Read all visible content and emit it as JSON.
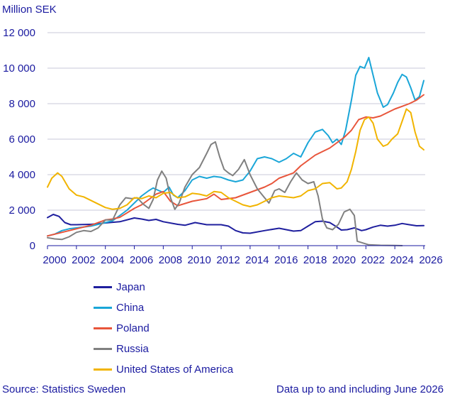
{
  "chart_data": {
    "type": "line",
    "title": "",
    "unit_label": "Million SEK",
    "xlabel": "",
    "ylabel": "",
    "xlim": [
      2000,
      2026
    ],
    "ylim": [
      0,
      12000
    ],
    "y_ticks": [
      0,
      2000,
      4000,
      6000,
      8000,
      10000,
      12000
    ],
    "y_tick_labels": [
      "0",
      "2 000",
      "4 000",
      "6 000",
      "8 000",
      "10 000",
      "12 000"
    ],
    "x_ticks": [
      2000,
      2002,
      2004,
      2006,
      2008,
      2010,
      2012,
      2014,
      2016,
      2018,
      2020,
      2022,
      2024,
      2026
    ],
    "x_tick_labels": [
      "2000",
      "2002",
      "2004",
      "2006",
      "2008",
      "2010",
      "2012",
      "2014",
      "2016",
      "2018",
      "2020",
      "2022",
      "2024",
      "2026"
    ],
    "grid": "horizontal",
    "legend_position": "bottom-left",
    "series": [
      {
        "name": "Japan",
        "color": "#1f1f9e",
        "points": [
          [
            2000,
            1580
          ],
          [
            2000.4,
            1760
          ],
          [
            2000.8,
            1650
          ],
          [
            2001.2,
            1300
          ],
          [
            2001.6,
            1180
          ],
          [
            2002,
            1180
          ],
          [
            2003,
            1200
          ],
          [
            2004,
            1280
          ],
          [
            2005,
            1350
          ],
          [
            2006,
            1560
          ],
          [
            2006.5,
            1500
          ],
          [
            2007,
            1420
          ],
          [
            2007.5,
            1480
          ],
          [
            2008,
            1350
          ],
          [
            2009,
            1200
          ],
          [
            2009.5,
            1150
          ],
          [
            2010.2,
            1300
          ],
          [
            2011,
            1180
          ],
          [
            2012,
            1180
          ],
          [
            2012.5,
            1100
          ],
          [
            2013,
            850
          ],
          [
            2013.5,
            720
          ],
          [
            2014,
            700
          ],
          [
            2015,
            850
          ],
          [
            2016,
            980
          ],
          [
            2016.5,
            900
          ],
          [
            2017,
            820
          ],
          [
            2017.5,
            850
          ],
          [
            2018,
            1100
          ],
          [
            2018.5,
            1350
          ],
          [
            2019,
            1380
          ],
          [
            2019.5,
            1300
          ],
          [
            2020,
            1050
          ],
          [
            2020.3,
            880
          ],
          [
            2020.7,
            900
          ],
          [
            2021.2,
            1000
          ],
          [
            2021.7,
            850
          ],
          [
            2022,
            900
          ],
          [
            2022.5,
            1050
          ],
          [
            2023,
            1150
          ],
          [
            2023.5,
            1100
          ],
          [
            2024,
            1150
          ],
          [
            2024.5,
            1250
          ],
          [
            2025,
            1180
          ],
          [
            2025.5,
            1120
          ],
          [
            2026,
            1130
          ]
        ]
      },
      {
        "name": "China",
        "color": "#1aa6d8",
        "points": [
          [
            2000,
            550
          ],
          [
            2000.5,
            650
          ],
          [
            2001,
            850
          ],
          [
            2001.5,
            950
          ],
          [
            2002,
            1000
          ],
          [
            2002.5,
            1050
          ],
          [
            2003,
            1100
          ],
          [
            2003.5,
            1200
          ],
          [
            2004,
            1300
          ],
          [
            2004.5,
            1400
          ],
          [
            2005,
            1700
          ],
          [
            2005.5,
            2000
          ],
          [
            2006,
            2400
          ],
          [
            2006.5,
            2800
          ],
          [
            2007,
            3100
          ],
          [
            2007.3,
            3250
          ],
          [
            2007.7,
            3100
          ],
          [
            2008,
            3000
          ],
          [
            2008.4,
            3300
          ],
          [
            2008.7,
            2850
          ],
          [
            2009,
            2700
          ],
          [
            2009.5,
            3100
          ],
          [
            2010,
            3700
          ],
          [
            2010.5,
            3900
          ],
          [
            2011,
            3800
          ],
          [
            2011.5,
            3900
          ],
          [
            2012,
            3850
          ],
          [
            2012.5,
            3700
          ],
          [
            2013,
            3600
          ],
          [
            2013.5,
            3700
          ],
          [
            2014,
            4200
          ],
          [
            2014.5,
            4900
          ],
          [
            2015,
            5000
          ],
          [
            2015.5,
            4900
          ],
          [
            2016,
            4700
          ],
          [
            2016.5,
            4900
          ],
          [
            2017,
            5200
          ],
          [
            2017.5,
            5000
          ],
          [
            2018,
            5800
          ],
          [
            2018.5,
            6400
          ],
          [
            2019,
            6550
          ],
          [
            2019.4,
            6200
          ],
          [
            2019.7,
            5800
          ],
          [
            2020,
            6000
          ],
          [
            2020.3,
            5700
          ],
          [
            2020.6,
            6500
          ],
          [
            2021,
            8200
          ],
          [
            2021.3,
            9600
          ],
          [
            2021.6,
            10100
          ],
          [
            2021.9,
            10000
          ],
          [
            2022.2,
            10600
          ],
          [
            2022.5,
            9600
          ],
          [
            2022.8,
            8600
          ],
          [
            2023.2,
            7800
          ],
          [
            2023.5,
            7950
          ],
          [
            2023.9,
            8600
          ],
          [
            2024.2,
            9200
          ],
          [
            2024.5,
            9650
          ],
          [
            2024.8,
            9500
          ],
          [
            2025.1,
            8900
          ],
          [
            2025.4,
            8200
          ],
          [
            2025.7,
            8400
          ],
          [
            2026,
            9300
          ]
        ]
      },
      {
        "name": "Poland",
        "color": "#e8553b",
        "points": [
          [
            2000,
            550
          ],
          [
            2001,
            750
          ],
          [
            2002,
            950
          ],
          [
            2003,
            1150
          ],
          [
            2003.5,
            1300
          ],
          [
            2004,
            1450
          ],
          [
            2004.5,
            1500
          ],
          [
            2005,
            1600
          ],
          [
            2005.5,
            1850
          ],
          [
            2006,
            2100
          ],
          [
            2006.5,
            2300
          ],
          [
            2007,
            2600
          ],
          [
            2007.5,
            2900
          ],
          [
            2008,
            3050
          ],
          [
            2008.5,
            2500
          ],
          [
            2009,
            2250
          ],
          [
            2010,
            2500
          ],
          [
            2011,
            2650
          ],
          [
            2011.5,
            2900
          ],
          [
            2012,
            2600
          ],
          [
            2013,
            2700
          ],
          [
            2014,
            3000
          ],
          [
            2015,
            3300
          ],
          [
            2015.5,
            3500
          ],
          [
            2016,
            3800
          ],
          [
            2016.5,
            3950
          ],
          [
            2017,
            4100
          ],
          [
            2017.5,
            4500
          ],
          [
            2018,
            4800
          ],
          [
            2018.5,
            5100
          ],
          [
            2019,
            5300
          ],
          [
            2019.5,
            5500
          ],
          [
            2020,
            5800
          ],
          [
            2020.5,
            6100
          ],
          [
            2021,
            6500
          ],
          [
            2021.5,
            7100
          ],
          [
            2022,
            7250
          ],
          [
            2022.5,
            7200
          ],
          [
            2023,
            7300
          ],
          [
            2023.5,
            7500
          ],
          [
            2024,
            7700
          ],
          [
            2024.5,
            7850
          ],
          [
            2025,
            8000
          ],
          [
            2025.5,
            8200
          ],
          [
            2026,
            8500
          ]
        ]
      },
      {
        "name": "Russia",
        "color": "#808080",
        "points": [
          [
            2000,
            450
          ],
          [
            2000.5,
            380
          ],
          [
            2001,
            350
          ],
          [
            2001.5,
            500
          ],
          [
            2002,
            750
          ],
          [
            2002.5,
            850
          ],
          [
            2003,
            800
          ],
          [
            2003.5,
            1000
          ],
          [
            2004,
            1450
          ],
          [
            2004.5,
            1450
          ],
          [
            2005,
            2300
          ],
          [
            2005.4,
            2700
          ],
          [
            2005.8,
            2650
          ],
          [
            2006.2,
            2700
          ],
          [
            2006.6,
            2350
          ],
          [
            2007,
            2100
          ],
          [
            2007.3,
            2600
          ],
          [
            2007.6,
            3700
          ],
          [
            2007.9,
            4200
          ],
          [
            2008.2,
            3800
          ],
          [
            2008.5,
            2700
          ],
          [
            2008.8,
            2050
          ],
          [
            2009.1,
            2400
          ],
          [
            2009.5,
            3300
          ],
          [
            2010,
            4000
          ],
          [
            2010.5,
            4400
          ],
          [
            2011,
            5200
          ],
          [
            2011.3,
            5700
          ],
          [
            2011.6,
            5850
          ],
          [
            2011.9,
            5000
          ],
          [
            2012.2,
            4300
          ],
          [
            2012.5,
            4100
          ],
          [
            2012.8,
            3950
          ],
          [
            2013.2,
            4300
          ],
          [
            2013.6,
            4850
          ],
          [
            2014,
            4000
          ],
          [
            2014.5,
            3200
          ],
          [
            2015,
            2700
          ],
          [
            2015.3,
            2400
          ],
          [
            2015.7,
            3100
          ],
          [
            2016,
            3200
          ],
          [
            2016.4,
            3000
          ],
          [
            2016.8,
            3600
          ],
          [
            2017.2,
            4100
          ],
          [
            2017.6,
            3700
          ],
          [
            2018,
            3500
          ],
          [
            2018.4,
            3600
          ],
          [
            2018.7,
            2800
          ],
          [
            2019,
            1500
          ],
          [
            2019.3,
            1000
          ],
          [
            2019.7,
            900
          ],
          [
            2020.1,
            1200
          ],
          [
            2020.5,
            1900
          ],
          [
            2020.9,
            2050
          ],
          [
            2021.2,
            1700
          ],
          [
            2021.4,
            250
          ],
          [
            2021.8,
            150
          ],
          [
            2022.2,
            50
          ],
          [
            2023,
            20
          ],
          [
            2024,
            10
          ],
          [
            2024.5,
            0
          ]
        ]
      },
      {
        "name": "United States of America",
        "color": "#f1b400",
        "points": [
          [
            2000,
            3300
          ],
          [
            2000.3,
            3800
          ],
          [
            2000.7,
            4100
          ],
          [
            2001,
            3900
          ],
          [
            2001.5,
            3200
          ],
          [
            2002,
            2850
          ],
          [
            2002.5,
            2750
          ],
          [
            2003,
            2550
          ],
          [
            2003.5,
            2350
          ],
          [
            2004,
            2150
          ],
          [
            2004.5,
            2050
          ],
          [
            2005,
            2100
          ],
          [
            2005.5,
            2300
          ],
          [
            2006,
            2700
          ],
          [
            2006.5,
            2650
          ],
          [
            2007,
            2800
          ],
          [
            2007.5,
            2700
          ],
          [
            2008,
            2950
          ],
          [
            2008.5,
            3000
          ],
          [
            2009,
            2700
          ],
          [
            2009.5,
            2750
          ],
          [
            2010,
            2950
          ],
          [
            2010.5,
            2900
          ],
          [
            2011,
            2800
          ],
          [
            2011.5,
            3050
          ],
          [
            2012,
            3000
          ],
          [
            2012.5,
            2700
          ],
          [
            2013,
            2500
          ],
          [
            2013.5,
            2300
          ],
          [
            2014,
            2200
          ],
          [
            2014.5,
            2300
          ],
          [
            2015,
            2500
          ],
          [
            2015.5,
            2700
          ],
          [
            2016,
            2800
          ],
          [
            2016.5,
            2750
          ],
          [
            2017,
            2700
          ],
          [
            2017.5,
            2800
          ],
          [
            2018,
            3100
          ],
          [
            2018.5,
            3200
          ],
          [
            2019,
            3500
          ],
          [
            2019.5,
            3550
          ],
          [
            2020,
            3200
          ],
          [
            2020.3,
            3250
          ],
          [
            2020.7,
            3600
          ],
          [
            2021,
            4300
          ],
          [
            2021.3,
            5300
          ],
          [
            2021.6,
            6500
          ],
          [
            2021.9,
            7100
          ],
          [
            2022.2,
            7250
          ],
          [
            2022.5,
            6900
          ],
          [
            2022.8,
            6000
          ],
          [
            2023.2,
            5600
          ],
          [
            2023.5,
            5700
          ],
          [
            2023.8,
            6000
          ],
          [
            2024.2,
            6300
          ],
          [
            2024.5,
            7000
          ],
          [
            2024.8,
            7700
          ],
          [
            2025.1,
            7500
          ],
          [
            2025.4,
            6400
          ],
          [
            2025.7,
            5600
          ],
          [
            2026,
            5400
          ]
        ]
      }
    ]
  },
  "footer": {
    "source": "Source:  Statistics Sweden",
    "note": "Data up to and including June 2026"
  }
}
